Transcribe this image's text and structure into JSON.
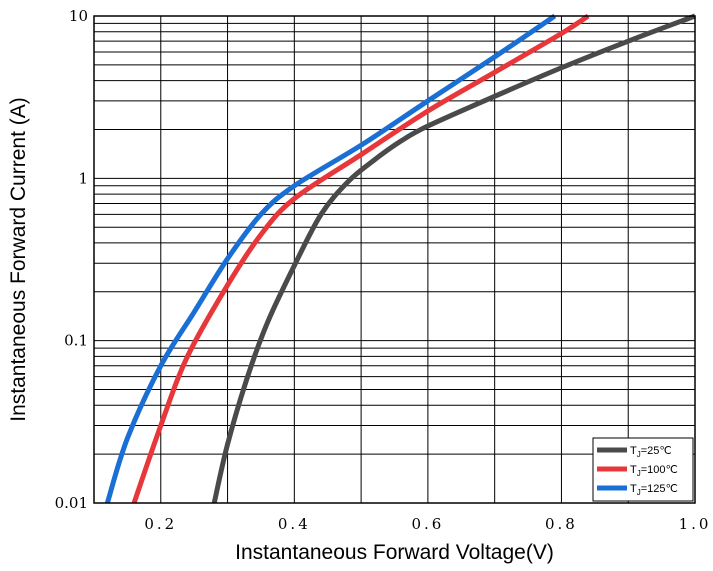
{
  "chart_data": {
    "type": "line",
    "title": "",
    "xlabel": "Instantaneous Forward Voltage(V)",
    "ylabel": "Instantaneous Forward Current (A)",
    "xlim": [
      0.1,
      1.0
    ],
    "ylim": [
      0.01,
      10
    ],
    "y_scale": "log",
    "grid": true,
    "legend_position": "bottom-right",
    "x_ticks": [
      {
        "value": 0.2,
        "label": "0.2"
      },
      {
        "value": 0.4,
        "label": "0.4"
      },
      {
        "value": 0.6,
        "label": "0.6"
      },
      {
        "value": 0.8,
        "label": "0.8"
      },
      {
        "value": 1.0,
        "label": "1.0"
      }
    ],
    "y_ticks": [
      {
        "value": 0.01,
        "label": "0.01"
      },
      {
        "value": 0.1,
        "label": "0.1"
      },
      {
        "value": 1,
        "label": "1"
      },
      {
        "value": 10,
        "label": "10"
      }
    ],
    "series": [
      {
        "name": "TJ=25℃",
        "legend_main": "T",
        "legend_sub": "J",
        "legend_rest": "=25℃",
        "color": "#4a4a4a",
        "points": [
          [
            0.28,
            0.01
          ],
          [
            0.3,
            0.023
          ],
          [
            0.33,
            0.06
          ],
          [
            0.36,
            0.13
          ],
          [
            0.4,
            0.29
          ],
          [
            0.44,
            0.6
          ],
          [
            0.48,
            0.95
          ],
          [
            0.52,
            1.3
          ],
          [
            0.56,
            1.7
          ],
          [
            0.6,
            2.1
          ],
          [
            0.7,
            3.2
          ],
          [
            0.8,
            4.8
          ],
          [
            0.9,
            7.0
          ],
          [
            1.0,
            10.0
          ]
        ]
      },
      {
        "name": "TJ=100℃",
        "legend_main": "T",
        "legend_sub": "J",
        "legend_rest": "=100℃",
        "color": "#e8373a",
        "points": [
          [
            0.16,
            0.01
          ],
          [
            0.2,
            0.03
          ],
          [
            0.24,
            0.08
          ],
          [
            0.3,
            0.22
          ],
          [
            0.35,
            0.45
          ],
          [
            0.4,
            0.75
          ],
          [
            0.5,
            1.4
          ],
          [
            0.6,
            2.6
          ],
          [
            0.7,
            4.5
          ],
          [
            0.8,
            7.8
          ],
          [
            0.84,
            10.0
          ]
        ]
      },
      {
        "name": "TJ=125℃",
        "legend_main": "T",
        "legend_sub": "J",
        "legend_rest": "=125℃",
        "color": "#1a6fd4",
        "points": [
          [
            0.12,
            0.01
          ],
          [
            0.15,
            0.025
          ],
          [
            0.2,
            0.07
          ],
          [
            0.25,
            0.15
          ],
          [
            0.3,
            0.32
          ],
          [
            0.35,
            0.6
          ],
          [
            0.4,
            0.9
          ],
          [
            0.5,
            1.6
          ],
          [
            0.6,
            3.0
          ],
          [
            0.7,
            5.6
          ],
          [
            0.79,
            10.0
          ]
        ]
      }
    ]
  }
}
